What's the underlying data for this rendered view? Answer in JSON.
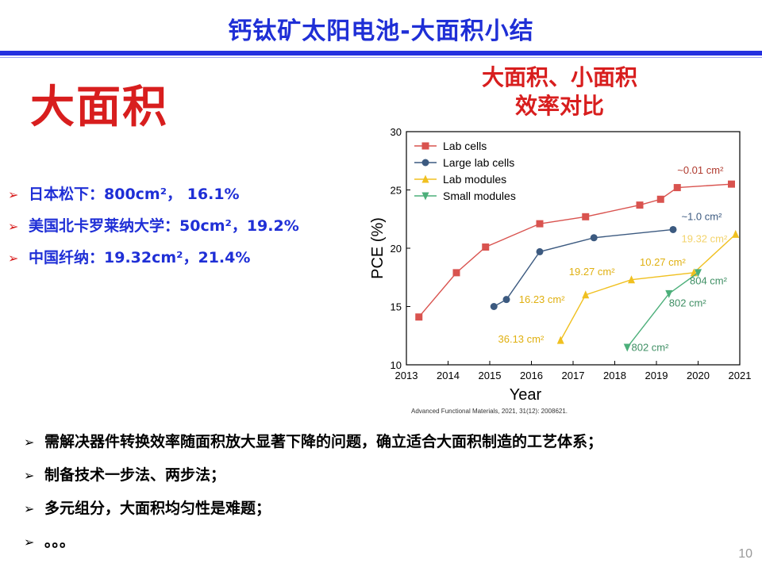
{
  "slide": {
    "title": "钙钛矿太阳电池-大面积小结",
    "heading": "大面积",
    "chart_heading_line1": "大面积、小面积",
    "chart_heading_line2": "效率对比",
    "top_bullets": [
      "日本松下：800cm²， 16.1%",
      "美国北卡罗莱纳大学：50cm²，19.2%",
      "中国纤纳：19.32cm²，21.4%"
    ],
    "bottom_bullets": [
      "需解决器件转换效率随面积放大显著下降的问题，确立适合大面积制造的工艺体系；",
      "制备技术一步法、两步法；",
      "多元组分，大面积均匀性是难题；",
      "。。。"
    ],
    "bullet_marker": "➢",
    "citation": "Advanced Functional Materials, 2021, 31(12): 2008621.",
    "page_number": "10"
  },
  "chart_data": {
    "type": "line",
    "xlabel": "Year",
    "ylabel": "PCE (%)",
    "xlim": [
      2013,
      2021
    ],
    "ylim": [
      10,
      30
    ],
    "x_ticks": [
      "2013",
      "2014",
      "2015",
      "2016",
      "2017",
      "2018",
      "2019",
      "2020",
      "2021"
    ],
    "y_ticks": [
      "10",
      "15",
      "20",
      "25",
      "30"
    ],
    "legend_position": "top-left",
    "series": [
      {
        "name": "Lab cells",
        "color": "#d9534f",
        "marker": "square",
        "x": [
          2013.3,
          2014.2,
          2014.9,
          2016.2,
          2017.3,
          2018.6,
          2019.1,
          2019.5,
          2020.8
        ],
        "y": [
          14.1,
          17.9,
          20.1,
          22.1,
          22.7,
          23.7,
          24.2,
          25.2,
          25.5
        ]
      },
      {
        "name": "Large lab cells",
        "color": "#3c5a80",
        "marker": "circle",
        "x": [
          2015.1,
          2015.4,
          2016.2,
          2017.5,
          2019.4
        ],
        "y": [
          15.0,
          15.6,
          19.7,
          20.9,
          21.6
        ]
      },
      {
        "name": "Lab modules",
        "color": "#f0c020",
        "marker": "triangle-up",
        "x": [
          2016.7,
          2017.3,
          2018.4,
          2019.9,
          2020.9
        ],
        "y": [
          12.1,
          16.0,
          17.3,
          17.9,
          21.2
        ]
      },
      {
        "name": "Small modules",
        "color": "#4caf7a",
        "marker": "triangle-down",
        "x": [
          2018.3,
          2019.3,
          2020.0
        ],
        "y": [
          11.5,
          16.1,
          17.9
        ]
      }
    ],
    "annotations": [
      {
        "text": "~0.01 cm²",
        "x": 2019.5,
        "y": 26.4,
        "color": "#b03a2e"
      },
      {
        "text": "~1.0 cm²",
        "x": 2019.6,
        "y": 22.4,
        "color": "#3c5a80"
      },
      {
        "text": "19.32 cm²",
        "x": 2019.6,
        "y": 20.5,
        "color": "#f3d36b"
      },
      {
        "text": "10.27 cm²",
        "x": 2018.6,
        "y": 18.5,
        "color": "#e0b010"
      },
      {
        "text": "19.27 cm²",
        "x": 2016.9,
        "y": 17.7,
        "color": "#e0b010"
      },
      {
        "text": "16.23 cm²",
        "x": 2015.7,
        "y": 15.3,
        "color": "#e0b010"
      },
      {
        "text": "36.13 cm²",
        "x": 2015.2,
        "y": 11.9,
        "color": "#e0b010"
      },
      {
        "text": "804 cm²",
        "x": 2019.8,
        "y": 16.9,
        "color": "#3f8f64"
      },
      {
        "text": "802 cm²",
        "x": 2019.3,
        "y": 15.0,
        "color": "#3f8f64"
      },
      {
        "text": "802 cm²",
        "x": 2018.4,
        "y": 11.2,
        "color": "#3f8f64"
      }
    ]
  }
}
